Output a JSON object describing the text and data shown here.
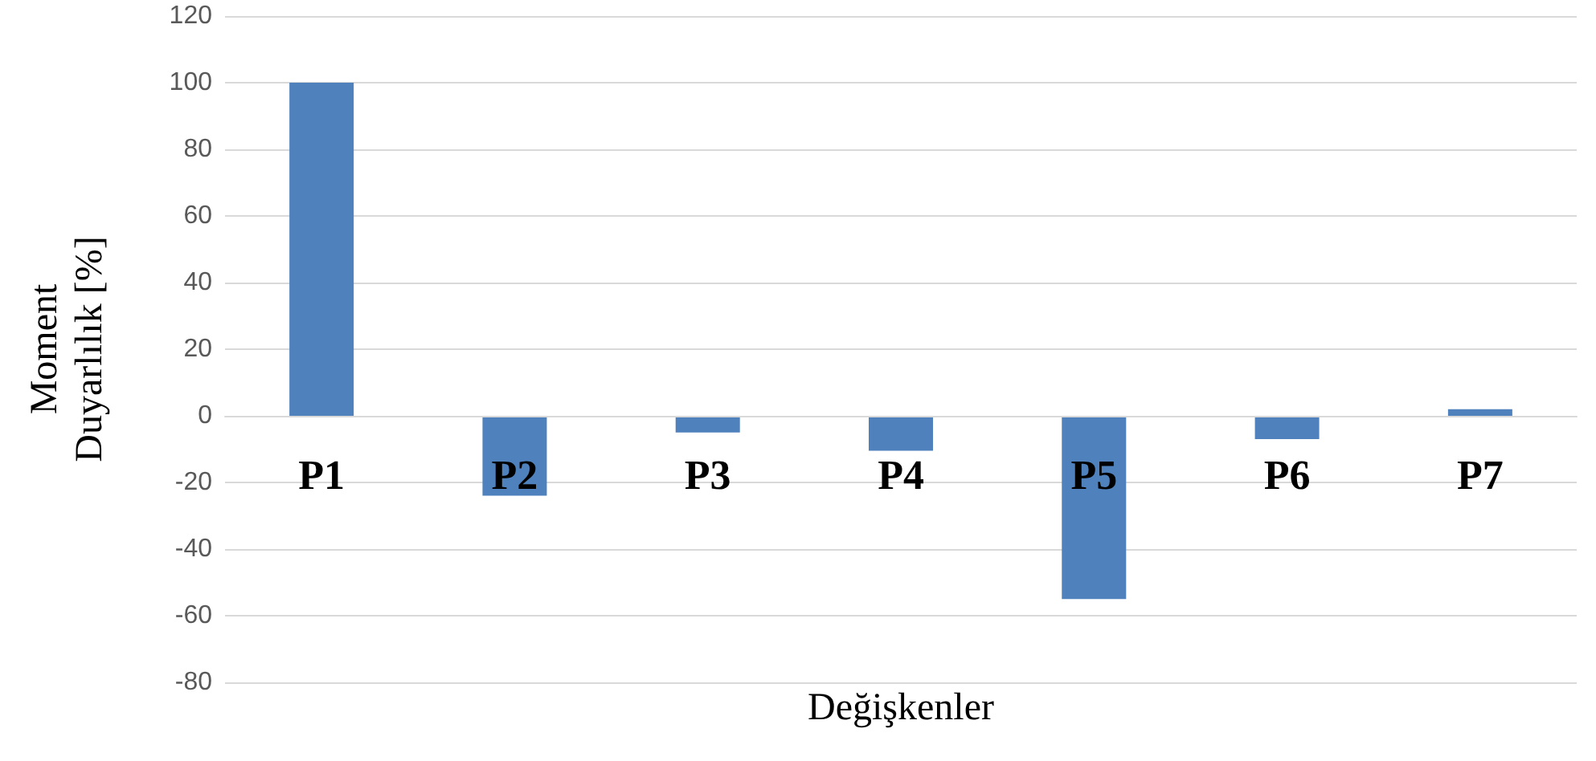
{
  "chart_data": {
    "type": "bar",
    "xlabel": "Değişkenler",
    "ylabel": "Moment\nDuyarlılık [%]",
    "categories": [
      "P1",
      "P2",
      "P3",
      "P4",
      "P5",
      "P6",
      "P7"
    ],
    "values": [
      100,
      -24,
      -5,
      -10.5,
      -55,
      -7,
      2
    ],
    "color": "#4f81bd",
    "ylim": [
      -80,
      120
    ],
    "yticks": [
      -80,
      -60,
      -40,
      -20,
      0,
      20,
      40,
      60,
      80,
      100,
      120
    ],
    "grid": "y"
  }
}
